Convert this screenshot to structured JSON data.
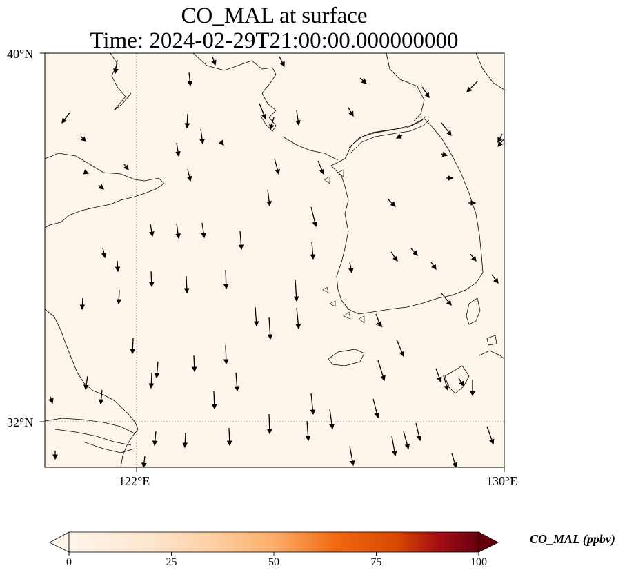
{
  "title": {
    "line1": "CO_MAL at surface",
    "line2": "Time: 2024-02-29T21:00:00.000000000"
  },
  "axes": {
    "lat_labels": [
      "40°N",
      "32°N"
    ],
    "lon_labels": [
      "122°E",
      "130°E"
    ]
  },
  "colorbar": {
    "label": "CO_MAL (ppbv)",
    "ticks": [
      "0",
      "25",
      "50",
      "75",
      "100"
    ],
    "range": [
      0,
      100
    ],
    "extend": "both",
    "colormap": [
      "#fff5eb",
      "#fdd0a2",
      "#fdae6b",
      "#f16913",
      "#d94801",
      "#a50f15",
      "#67000d"
    ]
  },
  "map": {
    "extent_lon": [
      120,
      130
    ],
    "extent_lat": [
      31,
      40
    ],
    "gridlines_dotted": true,
    "field_color": "#fff5eb",
    "coastline_color": "#000000",
    "wind_vectors": "black arrows, predominantly southward"
  }
}
